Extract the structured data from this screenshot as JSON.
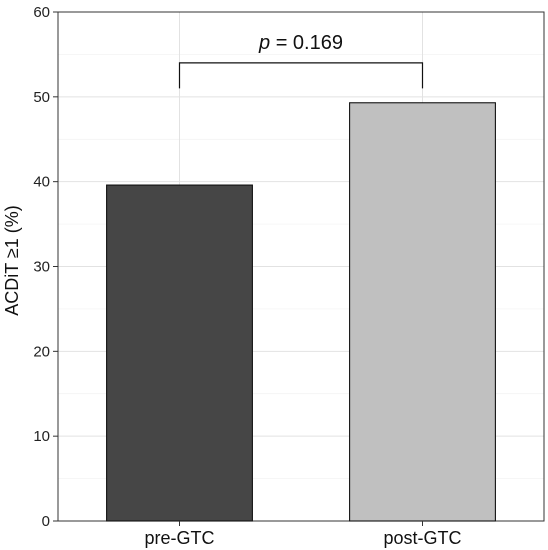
{
  "chart_data": {
    "type": "bar",
    "categories": [
      "pre-GTC",
      "post-GTC"
    ],
    "values": [
      39.6,
      49.3
    ],
    "bar_colors": [
      "#464646",
      "#c0c0c0"
    ],
    "xlabel": "",
    "ylabel": "ACDiT ≥1 (%)",
    "ylim": [
      0,
      60
    ],
    "yticks": [
      0,
      10,
      20,
      30,
      40,
      50,
      60
    ],
    "grid": true,
    "annotation": {
      "p_symbol": "p",
      "p_value_text": " = 0.169",
      "bracket_top": 54.0,
      "bracket_drop": 51.0
    }
  }
}
